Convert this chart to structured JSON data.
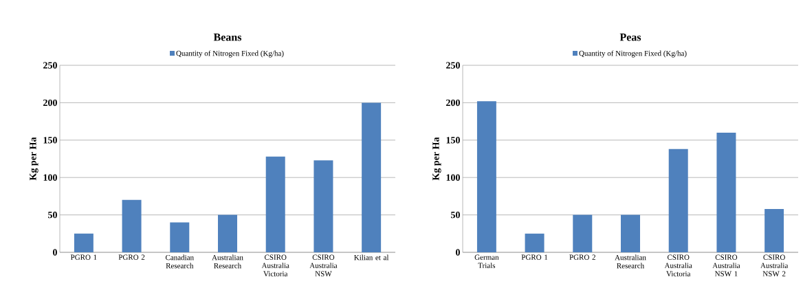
{
  "chart_data": [
    {
      "type": "bar",
      "title": "Beans",
      "ylabel": "Kg per Ha",
      "categories": [
        "PGRO 1",
        "PGRO 2",
        "Canadian Research",
        "Australian Research",
        "CSIRO Australia Victoria",
        "CSIRO Australia NSW",
        "Kilian et al"
      ],
      "series": [
        {
          "name": "Quantity of Nitrogen Fixed (Kg/ha)",
          "color": "#4f81bd",
          "values": [
            25,
            70,
            40,
            50,
            128,
            123,
            200
          ]
        }
      ],
      "ylim": [
        0,
        250
      ],
      "yticks": [
        0,
        50,
        100,
        150,
        200,
        250
      ],
      "grid": "y",
      "legend": "top"
    },
    {
      "type": "bar",
      "title": "Peas",
      "ylabel": "Kg per Ha",
      "categories": [
        "German Trials",
        "PGRO 1",
        "PGRO 2",
        "Australian Research",
        "CSIRO Australia Victoria",
        "CSIRO Australia NSW 1",
        "CSIRO Australia NSW 2"
      ],
      "series": [
        {
          "name": "Quantity of Nitrogen Fixed (Kg/ha)",
          "color": "#4f81bd",
          "values": [
            202,
            25,
            50,
            50,
            138,
            160,
            58
          ]
        }
      ],
      "ylim": [
        0,
        250
      ],
      "yticks": [
        0,
        50,
        100,
        150,
        200,
        250
      ],
      "grid": "y",
      "legend": "top"
    }
  ]
}
